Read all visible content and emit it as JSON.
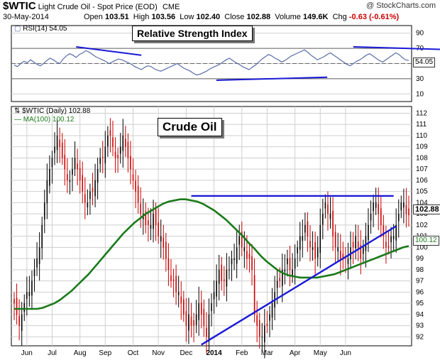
{
  "header": {
    "symbol": "$WTIC",
    "description": "Light Crude Oil - Spot Price (EOD)",
    "exchange": "CME",
    "date": "30-May-2014",
    "watermark": "@ StockCharts.com",
    "open_label": "Open",
    "open": "103.51",
    "high_label": "High",
    "high": "103.56",
    "low_label": "Low",
    "low": "102.40",
    "close_label": "Close",
    "close": "102.88",
    "volume_label": "Volume",
    "volume": "149.6K",
    "chg_label": "Chg",
    "chg": "-0.63 (-0.61%)"
  },
  "colors": {
    "up": "#000000",
    "down": "#cc0000",
    "ma": "#1a7a1a",
    "trend": "#1a1ad6",
    "rsi": "#5a6ea8",
    "grid": "#cfcfcf"
  },
  "chart_data": [
    {
      "type": "line",
      "panel": "rsi",
      "title": "Relative Strength Index",
      "legend": "RSI(14) 54.05",
      "last_value_label": "54.05",
      "ylim": [
        0,
        100
      ],
      "yticks": [
        "90",
        "70",
        "50",
        "30",
        "10"
      ],
      "reference_lines": [
        70,
        50,
        30
      ],
      "series": [
        {
          "name": "RSI(14)",
          "values": [
            48,
            46,
            50,
            53,
            51,
            55,
            52,
            49,
            47,
            50,
            54,
            57,
            55,
            52,
            50,
            56,
            60,
            63,
            61,
            58,
            62,
            64,
            67,
            65,
            62,
            59,
            57,
            55,
            53,
            50,
            52,
            54,
            56,
            55,
            53,
            51,
            49,
            46,
            44,
            42,
            45,
            47,
            46,
            43,
            41,
            40,
            42,
            44,
            46,
            48,
            50,
            47,
            44,
            42,
            40,
            37,
            35,
            36,
            38,
            40,
            43,
            45,
            47,
            49,
            52,
            55,
            57,
            54,
            51,
            49,
            46,
            44,
            42,
            45,
            48,
            52,
            56,
            59,
            62,
            60,
            57,
            55,
            52,
            54,
            57,
            60,
            62,
            64,
            66,
            68,
            65,
            61,
            58,
            55,
            57,
            59,
            62,
            64,
            61,
            58,
            55,
            52,
            49,
            47,
            50,
            53,
            55,
            58,
            61,
            63,
            60,
            57,
            54,
            52,
            55,
            58,
            61,
            64,
            62,
            58,
            55,
            54.05
          ]
        }
      ],
      "trendlines": [
        {
          "x": [
            19,
            39
          ],
          "y": [
            72,
            61
          ]
        },
        {
          "x": [
            62,
            96
          ],
          "y": [
            28,
            32
          ]
        },
        {
          "x": [
            104,
            152
          ],
          "y": [
            72,
            66
          ]
        }
      ]
    },
    {
      "type": "candlestick",
      "panel": "price",
      "title": "Crude Oil",
      "legend": "$WTIC (Daily) 102.88",
      "ma_legend": "MA(100) 100.12",
      "last_value_label": "102.88",
      "ma_last_label": "100.12",
      "ylim": [
        91.2,
        112.6
      ],
      "yticks": [
        "112",
        "111",
        "110",
        "109",
        "108",
        "107",
        "106",
        "105",
        "104",
        "103",
        "102",
        "101",
        "100",
        "99",
        "98",
        "97",
        "96",
        "95",
        "94",
        "93",
        "92"
      ],
      "x_labels": [
        "Jun",
        "Jul",
        "Aug",
        "Sep",
        "Oct",
        "Nov",
        "Dec",
        "2014",
        "Feb",
        "Mar",
        "Apr",
        "May",
        "Jun"
      ],
      "x_label_positions": [
        5,
        15,
        26,
        36,
        47,
        57,
        68,
        79,
        90,
        100,
        111,
        121,
        131
      ],
      "series": [
        {
          "name": "$WTIC",
          "close": [
            95,
            94,
            93,
            94,
            95,
            96,
            96,
            97,
            98,
            99,
            100,
            102,
            104,
            106,
            107,
            108,
            109,
            110,
            109,
            108,
            107,
            106,
            106,
            107,
            108,
            107,
            106,
            105,
            104,
            104,
            105,
            105,
            106,
            107,
            108,
            108,
            109,
            110,
            110,
            109,
            108,
            108,
            109,
            110,
            109,
            108,
            107,
            106,
            105,
            104,
            103,
            103,
            102,
            102,
            102,
            103,
            102,
            101,
            101,
            100,
            99,
            98,
            97,
            97,
            96,
            96,
            95,
            94,
            93,
            94,
            93,
            93,
            94,
            95,
            94,
            93,
            92,
            94,
            95,
            96,
            97,
            98,
            97,
            97,
            98,
            98,
            99,
            99,
            100,
            101,
            100,
            100,
            99,
            99,
            98,
            94,
            93,
            92,
            92,
            93,
            93,
            94,
            95,
            96,
            97,
            97,
            98,
            98,
            99,
            98,
            98,
            99,
            100,
            101,
            101,
            102,
            101,
            100,
            100,
            99,
            100,
            102,
            103,
            104,
            103,
            103,
            101,
            100,
            100,
            99,
            99,
            99,
            99,
            100,
            100,
            101,
            100,
            99,
            100,
            101,
            102,
            103,
            104,
            104,
            103,
            102,
            101,
            100,
            100,
            101,
            101,
            102,
            103,
            104,
            104,
            103,
            102.88
          ]
        },
        {
          "name": "MA(100)",
          "values": [
            94.5,
            94.5,
            94.5,
            94.5,
            94.5,
            94.6,
            94.8,
            95,
            95.3,
            95.7,
            96.1,
            96.6,
            97.1,
            97.6,
            98.2,
            98.8,
            99.4,
            100,
            100.6,
            101.2,
            101.7,
            102.2,
            102.6,
            103,
            103.3,
            103.6,
            103.9,
            104.1,
            104.2,
            104.3,
            104.3,
            104.2,
            104.1,
            103.9,
            103.6,
            103.3,
            102.9,
            102.5,
            102,
            101.5,
            101,
            100.4,
            99.9,
            99.3,
            98.8,
            98.4,
            98,
            97.7,
            97.5,
            97.4,
            97.3,
            97.3,
            97.3,
            97.3,
            97.4,
            97.5,
            97.6,
            97.8,
            98,
            98.2,
            98.4,
            98.6,
            98.8,
            99,
            99.2,
            99.4,
            99.6,
            99.8,
            100,
            100.12
          ]
        }
      ],
      "trendlines": [
        {
          "x": [
            70,
            150
          ],
          "y": [
            104.6,
            104.6
          ]
        },
        {
          "x": [
            74,
            151
          ],
          "y": [
            91.3,
            101.9
          ]
        }
      ]
    }
  ]
}
